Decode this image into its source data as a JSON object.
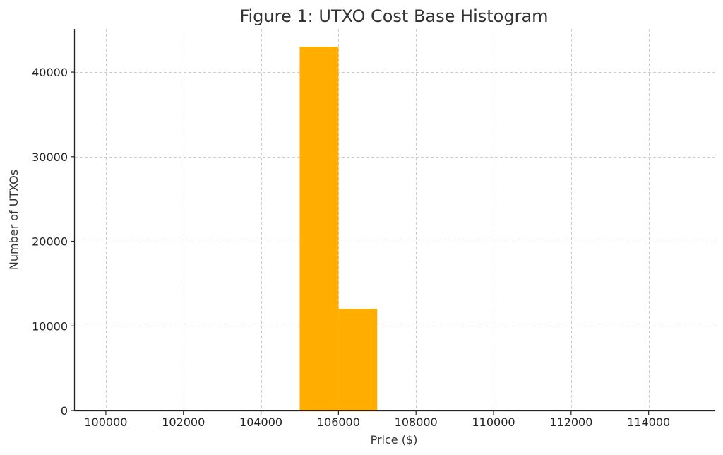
{
  "chart_data": {
    "type": "bar",
    "title": "Figure 1: UTXO Cost Base Histogram",
    "xlabel": "Price ($)",
    "ylabel": "Number of UTXOs",
    "xlim": [
      99200,
      115700
    ],
    "ylim": [
      0,
      45100
    ],
    "xticks": [
      100000,
      102000,
      104000,
      106000,
      108000,
      110000,
      112000,
      114000
    ],
    "yticks": [
      0,
      10000,
      20000,
      30000,
      40000
    ],
    "grid": true,
    "bar_color": "#ffae00",
    "bins": [
      {
        "x0": 105000,
        "x1": 106000,
        "value": 43000
      },
      {
        "x0": 106000,
        "x1": 107000,
        "value": 12000
      }
    ]
  }
}
